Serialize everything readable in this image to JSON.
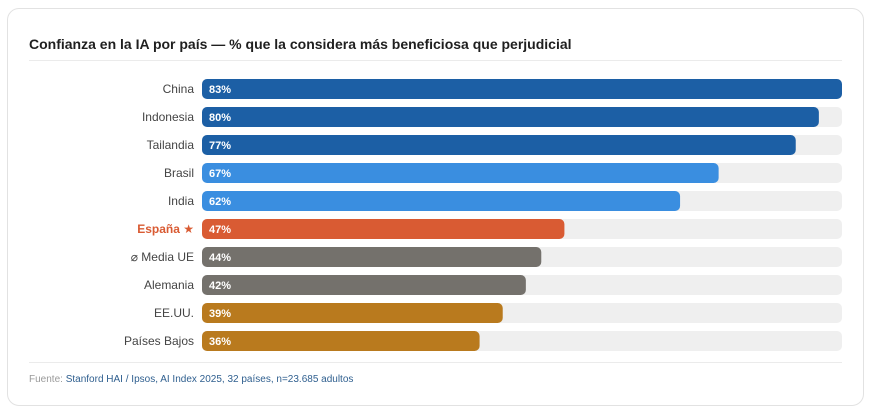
{
  "chart_data": {
    "type": "bar",
    "orientation": "horizontal",
    "title": "Confianza en la IA por país — % que la considera más beneficiosa que perjudicial",
    "categories": [
      "China",
      "Indonesia",
      "Tailandia",
      "Brasil",
      "India",
      "España ★",
      "⌀ Media UE",
      "Alemania",
      "EE.UU.",
      "Países Bajos"
    ],
    "values": [
      83,
      80,
      77,
      67,
      62,
      47,
      44,
      42,
      39,
      36
    ],
    "value_labels": [
      "83%",
      "80%",
      "77%",
      "67%",
      "62%",
      "47%",
      "44%",
      "42%",
      "39%",
      "36%"
    ],
    "bar_colors": [
      "#1c5fa5",
      "#1c5fa5",
      "#1c5fa5",
      "#3a8ee0",
      "#3a8ee0",
      "#d95b33",
      "#74716c",
      "#74716c",
      "#b97a1e",
      "#b97a1e"
    ],
    "highlight_category": "España ★",
    "highlight_color": "#d95b33",
    "track_color": "#efefef",
    "xlim": [
      0,
      83
    ],
    "grid": false,
    "legend": "none"
  },
  "source": {
    "label": "Fuente:",
    "text": "Stanford HAI / Ipsos, AI Index 2025, 32 países, n=23.685 adultos"
  }
}
